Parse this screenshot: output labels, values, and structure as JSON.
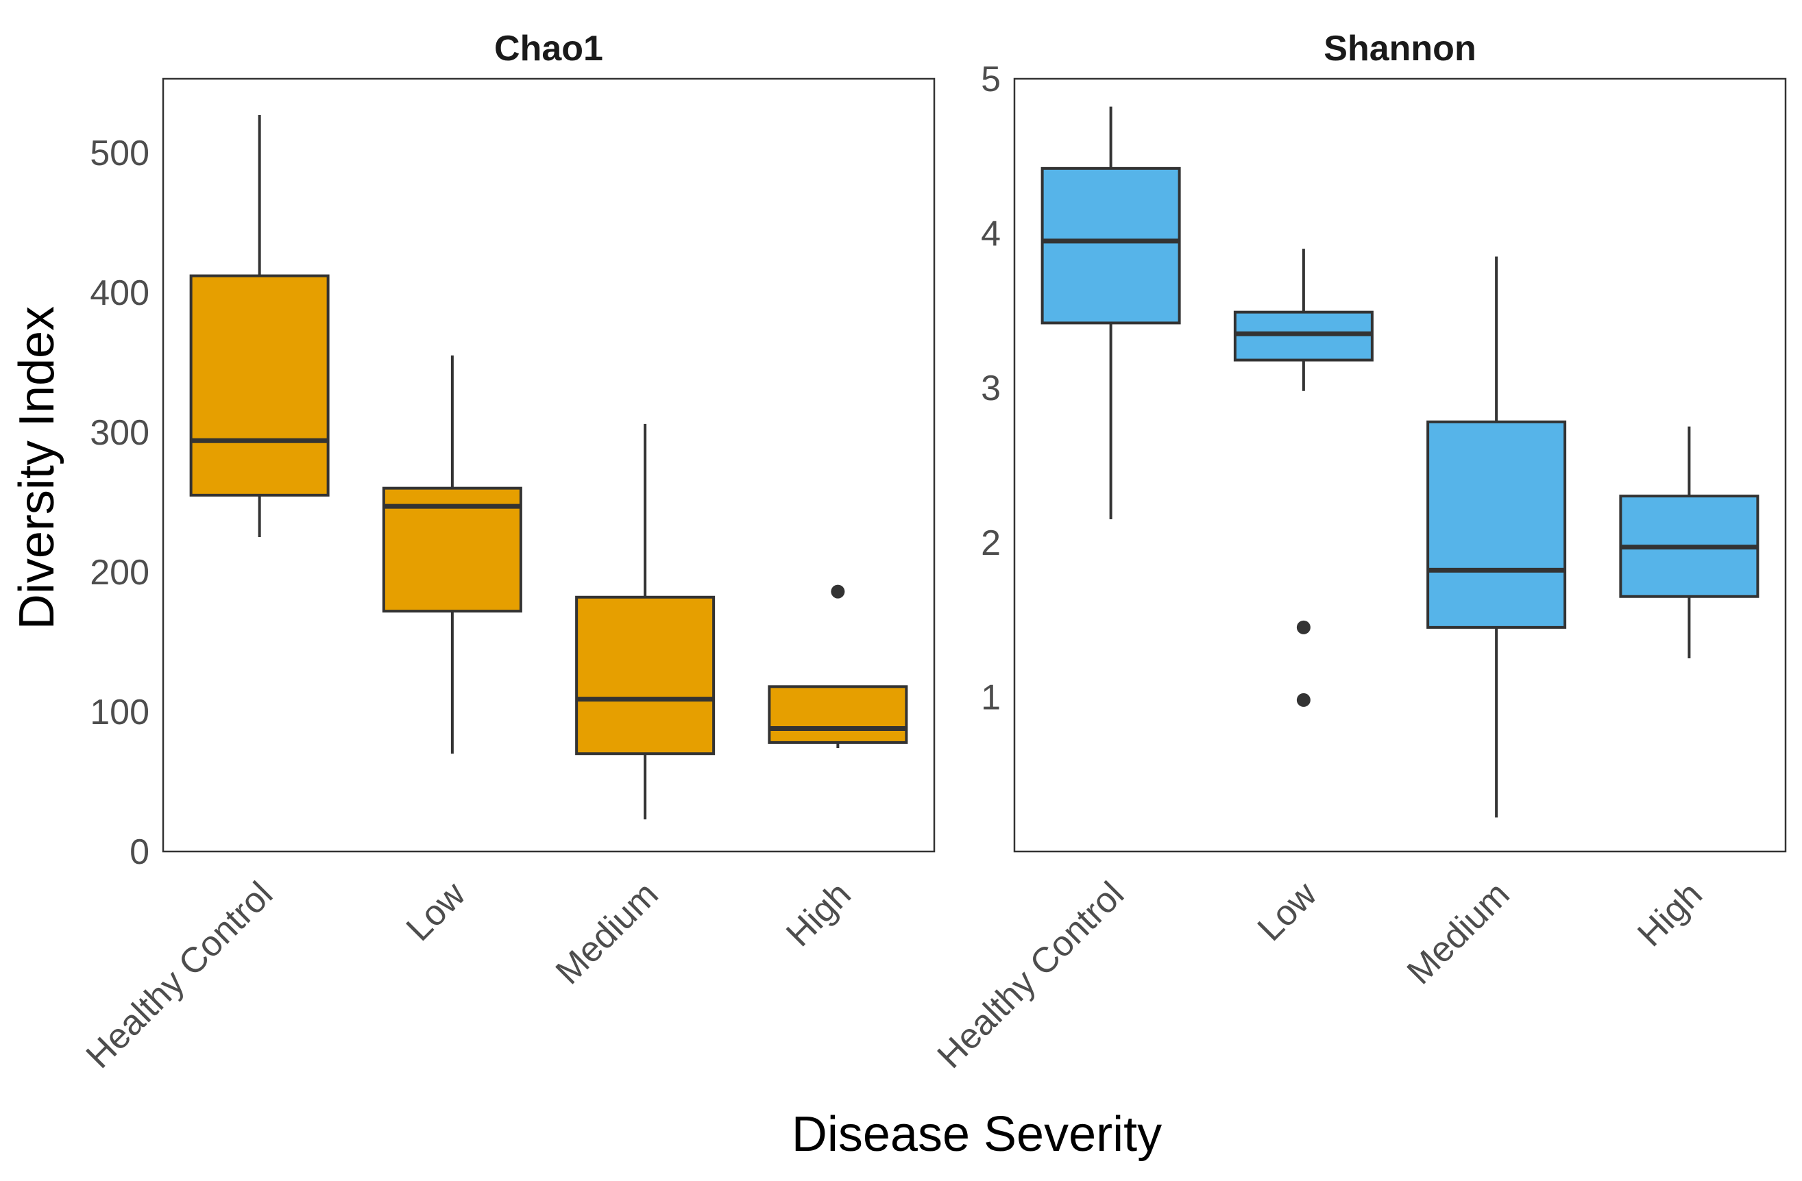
{
  "chart_data": {
    "type": "boxplot",
    "xlabel": "Disease Severity",
    "ylabel": "Diversity Index",
    "categories": [
      "Healthy Control",
      "Low",
      "Medium",
      "High"
    ],
    "facets": [
      {
        "title": "Chao1",
        "color": "#E69F00",
        "ylim": [
          0,
          553
        ],
        "yticks": [
          0,
          100,
          200,
          300,
          400,
          500
        ],
        "ytick_labels": [
          "0",
          "100",
          "200",
          "300",
          "400",
          "500"
        ],
        "boxes": [
          {
            "category": "Healthy Control",
            "whisker_low": 225,
            "q1": 255,
            "median": 294,
            "q3": 412,
            "whisker_high": 527,
            "outliers": []
          },
          {
            "category": "Low",
            "whisker_low": 70,
            "q1": 172,
            "median": 247,
            "q3": 260,
            "whisker_high": 355,
            "outliers": []
          },
          {
            "category": "Medium",
            "whisker_low": 23,
            "q1": 70,
            "median": 109,
            "q3": 182,
            "whisker_high": 306,
            "outliers": []
          },
          {
            "category": "High",
            "whisker_low": 74,
            "q1": 78,
            "median": 88,
            "q3": 118,
            "whisker_high": 118,
            "outliers": [
              186
            ]
          }
        ]
      },
      {
        "title": "Shannon",
        "color": "#56B4E9",
        "ylim": [
          0.0,
          5.0
        ],
        "yticks": [
          1,
          2,
          3,
          4,
          5
        ],
        "ytick_labels": [
          "1",
          "2",
          "3",
          "4",
          "5"
        ],
        "boxes": [
          {
            "category": "Healthy Control",
            "whisker_low": 2.15,
            "q1": 3.42,
            "median": 3.95,
            "q3": 4.42,
            "whisker_high": 4.82,
            "outliers": []
          },
          {
            "category": "Low",
            "whisker_low": 2.98,
            "q1": 3.18,
            "median": 3.35,
            "q3": 3.49,
            "whisker_high": 3.9,
            "outliers": [
              1.45,
              0.98
            ]
          },
          {
            "category": "Medium",
            "whisker_low": 0.22,
            "q1": 1.45,
            "median": 1.82,
            "q3": 2.78,
            "whisker_high": 3.85,
            "outliers": []
          },
          {
            "category": "High",
            "whisker_low": 1.25,
            "q1": 1.65,
            "median": 1.97,
            "q3": 2.3,
            "whisker_high": 2.75,
            "outliers": []
          }
        ]
      }
    ]
  }
}
